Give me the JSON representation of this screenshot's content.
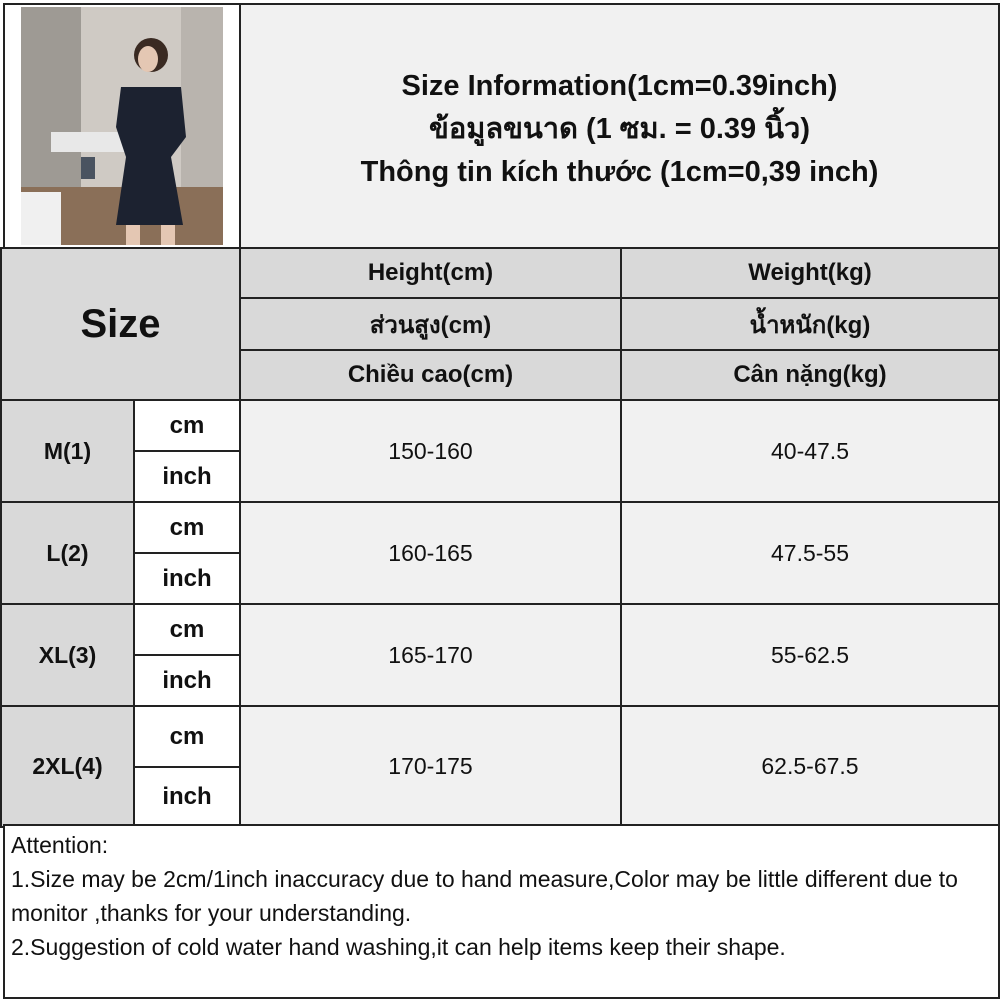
{
  "header": {
    "title_lines": [
      "Size Information(1cm=0.39inch)",
      "ข้อมูลขนาด (1 ซม. = 0.39 นิ้ว)",
      "Thông tin kích thước (1cm=0,39 inch)"
    ],
    "size_label": "Size",
    "columns": [
      {
        "labels": [
          "Height(cm)",
          "ส่วนสูง(cm)",
          "Chiều cao(cm)"
        ]
      },
      {
        "labels": [
          "Weight(kg)",
          "น้ำหนัก(kg)",
          "Cân nặng(kg)"
        ]
      }
    ]
  },
  "units": {
    "cm": "cm",
    "inch": "inch"
  },
  "rows": [
    {
      "size": "M(1)",
      "height": "150-160",
      "weight": "40-47.5"
    },
    {
      "size": "L(2)",
      "height": "160-165",
      "weight": "47.5-55"
    },
    {
      "size": "XL(3)",
      "height": "165-170",
      "weight": "55-62.5"
    },
    {
      "size": "2XL(4)",
      "height": "170-175",
      "weight": "62.5-67.5"
    }
  ],
  "notes": {
    "heading": "Attention:",
    "lines": [
      "1.Size may be 2cm/1inch inaccuracy due to hand measure,Color may be little different due to monitor ,thanks for your understanding.",
      "2.Suggestion of cold water hand washing,it can help items keep their shape."
    ]
  }
}
